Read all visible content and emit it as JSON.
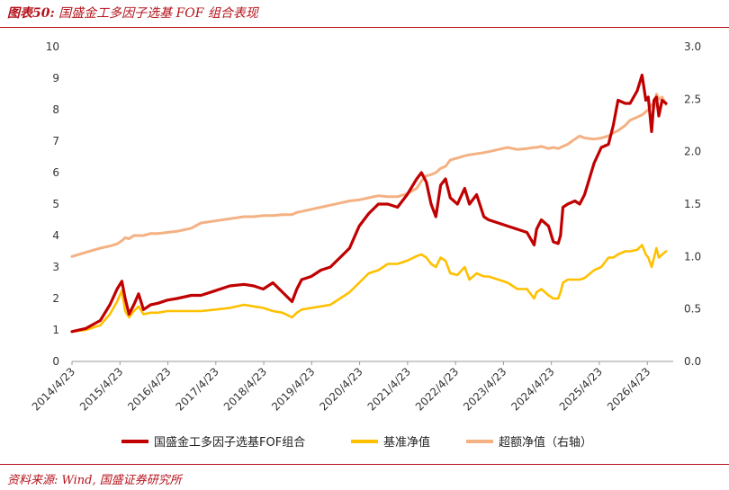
{
  "header": {
    "figure_label": "图表50:",
    "title_text": "国盛金工多因子选基 FOF 组合表现"
  },
  "footer": {
    "source": "资料来源: Wind, 国盛证券研究所"
  },
  "chart_data": {
    "type": "line",
    "title": "国盛金工多因子选基 FOF 组合表现",
    "x_ticks": [
      "2014/4/23",
      "2015/4/23",
      "2016/4/23",
      "2017/4/23",
      "2018/4/23",
      "2019/4/23",
      "2020/4/23",
      "2021/4/23",
      "2022/4/23",
      "2023/4/23",
      "2024/4/23",
      "2025/4/23",
      "2026/4/23"
    ],
    "y_left": {
      "ylim": [
        0,
        10
      ],
      "ticks": [
        "0",
        "1",
        "2",
        "3",
        "4",
        "5",
        "6",
        "7",
        "8",
        "9",
        "10"
      ]
    },
    "y_right": {
      "ylim": [
        0,
        3.0
      ],
      "ticks": [
        "0.0",
        "0.5",
        "1.0",
        "1.5",
        "2.0",
        "2.5",
        "3.0"
      ]
    },
    "grid": false,
    "legend_position": "bottom",
    "series": [
      {
        "name": "国盛金工多因子选基FOF组合",
        "axis": "left",
        "color": "#c00000",
        "x": [
          2014.31,
          2014.6,
          2014.9,
          2015.1,
          2015.25,
          2015.35,
          2015.42,
          2015.5,
          2015.6,
          2015.7,
          2015.8,
          2015.95,
          2016.1,
          2016.3,
          2016.5,
          2016.8,
          2017.0,
          2017.3,
          2017.6,
          2017.9,
          2018.1,
          2018.3,
          2018.5,
          2018.7,
          2018.9,
          2019.0,
          2019.1,
          2019.3,
          2019.5,
          2019.7,
          2019.9,
          2020.1,
          2020.3,
          2020.5,
          2020.7,
          2020.9,
          2021.1,
          2021.3,
          2021.5,
          2021.6,
          2021.7,
          2021.8,
          2021.9,
          2022.0,
          2022.1,
          2022.2,
          2022.35,
          2022.5,
          2022.6,
          2022.75,
          2022.9,
          2023.0,
          2023.2,
          2023.4,
          2023.6,
          2023.8,
          2023.95,
          2024.0,
          2024.1,
          2024.25,
          2024.35,
          2024.45,
          2024.5,
          2024.55,
          2024.65,
          2024.8,
          2024.9,
          2025.0,
          2025.2,
          2025.35,
          2025.5,
          2025.6,
          2025.7,
          2025.85,
          2025.95,
          2026.1,
          2026.2,
          2026.28,
          2026.33,
          2026.4,
          2026.45,
          2026.5,
          2026.55,
          2026.62,
          2026.7
        ],
        "values": [
          0.95,
          1.05,
          1.3,
          1.8,
          2.3,
          2.55,
          2.0,
          1.5,
          1.8,
          2.15,
          1.65,
          1.8,
          1.85,
          1.95,
          2.0,
          2.1,
          2.1,
          2.25,
          2.4,
          2.45,
          2.4,
          2.3,
          2.5,
          2.2,
          1.9,
          2.3,
          2.6,
          2.7,
          2.9,
          3.0,
          3.3,
          3.6,
          4.3,
          4.7,
          5.0,
          5.0,
          4.9,
          5.3,
          5.8,
          6.0,
          5.7,
          5.0,
          4.6,
          5.6,
          5.8,
          5.2,
          5.0,
          5.5,
          5.0,
          5.3,
          4.6,
          4.5,
          4.4,
          4.3,
          4.2,
          4.1,
          3.7,
          4.2,
          4.5,
          4.3,
          3.8,
          3.75,
          4.0,
          4.9,
          5.0,
          5.1,
          5.0,
          5.3,
          6.3,
          6.8,
          6.9,
          7.5,
          8.3,
          8.2,
          8.2,
          8.6,
          9.1,
          8.3,
          8.4,
          7.3,
          8.3,
          8.4,
          7.8,
          8.3,
          8.2
        ]
      },
      {
        "name": "基准净值",
        "axis": "left",
        "color": "#ffc000",
        "x": [
          2014.31,
          2014.6,
          2014.9,
          2015.1,
          2015.25,
          2015.35,
          2015.42,
          2015.5,
          2015.6,
          2015.7,
          2015.8,
          2015.95,
          2016.1,
          2016.3,
          2016.5,
          2016.8,
          2017.0,
          2017.3,
          2017.6,
          2017.9,
          2018.1,
          2018.3,
          2018.5,
          2018.7,
          2018.9,
          2019.0,
          2019.1,
          2019.3,
          2019.5,
          2019.7,
          2019.9,
          2020.1,
          2020.3,
          2020.5,
          2020.7,
          2020.9,
          2021.1,
          2021.3,
          2021.5,
          2021.6,
          2021.7,
          2021.8,
          2021.9,
          2022.0,
          2022.1,
          2022.2,
          2022.35,
          2022.5,
          2022.6,
          2022.75,
          2022.9,
          2023.0,
          2023.2,
          2023.4,
          2023.6,
          2023.8,
          2023.95,
          2024.0,
          2024.1,
          2024.25,
          2024.35,
          2024.45,
          2024.5,
          2024.55,
          2024.65,
          2024.8,
          2024.9,
          2025.0,
          2025.2,
          2025.35,
          2025.5,
          2025.6,
          2025.7,
          2025.85,
          2025.95,
          2026.1,
          2026.2,
          2026.28,
          2026.33,
          2026.4,
          2026.45,
          2026.5,
          2026.55,
          2026.62,
          2026.7
        ],
        "values": [
          0.95,
          1.0,
          1.15,
          1.5,
          1.9,
          2.25,
          1.6,
          1.4,
          1.6,
          1.75,
          1.5,
          1.55,
          1.55,
          1.6,
          1.6,
          1.6,
          1.6,
          1.65,
          1.7,
          1.8,
          1.75,
          1.7,
          1.6,
          1.55,
          1.4,
          1.55,
          1.65,
          1.7,
          1.75,
          1.8,
          2.0,
          2.2,
          2.5,
          2.8,
          2.9,
          3.1,
          3.1,
          3.2,
          3.35,
          3.4,
          3.3,
          3.1,
          3.0,
          3.3,
          3.2,
          2.8,
          2.75,
          3.0,
          2.6,
          2.8,
          2.7,
          2.7,
          2.6,
          2.5,
          2.3,
          2.3,
          2.0,
          2.2,
          2.3,
          2.1,
          2.0,
          2.0,
          2.2,
          2.5,
          2.6,
          2.6,
          2.6,
          2.65,
          2.9,
          3.0,
          3.3,
          3.3,
          3.4,
          3.5,
          3.5,
          3.55,
          3.7,
          3.4,
          3.3,
          3.0,
          3.3,
          3.6,
          3.3,
          3.4,
          3.5
        ]
      },
      {
        "name": "超额净值（右轴）",
        "axis": "right",
        "color": "#f4b183",
        "x": [
          2014.31,
          2014.6,
          2014.9,
          2015.1,
          2015.25,
          2015.35,
          2015.42,
          2015.5,
          2015.6,
          2015.7,
          2015.8,
          2015.95,
          2016.1,
          2016.3,
          2016.5,
          2016.8,
          2017.0,
          2017.3,
          2017.6,
          2017.9,
          2018.1,
          2018.3,
          2018.5,
          2018.7,
          2018.9,
          2019.0,
          2019.1,
          2019.3,
          2019.5,
          2019.7,
          2019.9,
          2020.1,
          2020.3,
          2020.5,
          2020.7,
          2020.9,
          2021.1,
          2021.3,
          2021.5,
          2021.6,
          2021.7,
          2021.8,
          2021.9,
          2022.0,
          2022.1,
          2022.2,
          2022.35,
          2022.5,
          2022.6,
          2022.75,
          2022.9,
          2023.0,
          2023.2,
          2023.4,
          2023.6,
          2023.8,
          2023.95,
          2024.0,
          2024.1,
          2024.25,
          2024.35,
          2024.45,
          2024.5,
          2024.55,
          2024.65,
          2024.8,
          2024.9,
          2025.0,
          2025.2,
          2025.35,
          2025.5,
          2025.6,
          2025.7,
          2025.85,
          2025.95,
          2026.1,
          2026.2,
          2026.28,
          2026.33,
          2026.4,
          2026.45,
          2026.5,
          2026.55,
          2026.62,
          2026.7
        ],
        "values": [
          1.0,
          1.04,
          1.08,
          1.1,
          1.12,
          1.15,
          1.18,
          1.17,
          1.2,
          1.2,
          1.2,
          1.22,
          1.22,
          1.23,
          1.24,
          1.27,
          1.32,
          1.34,
          1.36,
          1.38,
          1.38,
          1.39,
          1.39,
          1.4,
          1.4,
          1.42,
          1.43,
          1.45,
          1.47,
          1.49,
          1.51,
          1.53,
          1.54,
          1.56,
          1.58,
          1.57,
          1.57,
          1.6,
          1.65,
          1.72,
          1.77,
          1.78,
          1.8,
          1.84,
          1.86,
          1.92,
          1.94,
          1.96,
          1.97,
          1.98,
          1.99,
          2.0,
          2.02,
          2.04,
          2.02,
          2.03,
          2.04,
          2.04,
          2.05,
          2.03,
          2.04,
          2.03,
          2.04,
          2.05,
          2.07,
          2.12,
          2.15,
          2.13,
          2.12,
          2.13,
          2.15,
          2.18,
          2.2,
          2.25,
          2.3,
          2.33,
          2.35,
          2.38,
          2.4,
          2.45,
          2.42,
          2.55,
          2.5,
          2.52,
          2.45
        ]
      }
    ]
  }
}
